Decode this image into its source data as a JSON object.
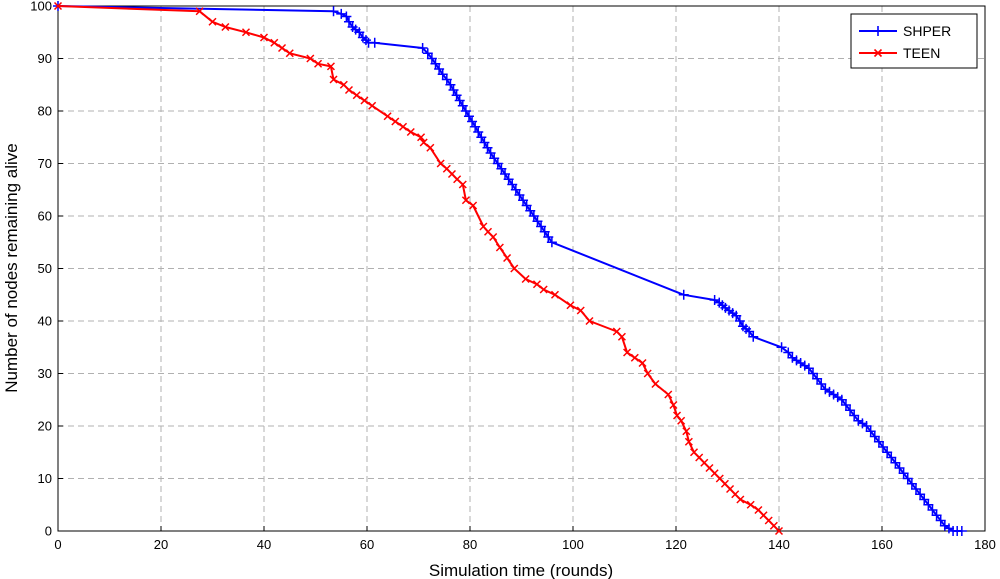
{
  "chart_data": {
    "type": "line",
    "title": "",
    "xlabel": "Simulation time (rounds)",
    "ylabel": "Number of nodes remaining alive",
    "xlim": [
      0,
      180
    ],
    "ylim": [
      0,
      100
    ],
    "xticks": [
      "0",
      "20",
      "40",
      "60",
      "80",
      "100",
      "120",
      "140",
      "160",
      "180"
    ],
    "yticks": [
      "0",
      "10",
      "20",
      "30",
      "40",
      "50",
      "60",
      "70",
      "80",
      "90",
      "100"
    ],
    "grid": true,
    "legend_position": "top-right",
    "series": [
      {
        "name": "SHPER",
        "color": "#0000ff",
        "marker": "plus",
        "x": [
          0,
          53.5,
          55,
          56,
          56.5,
          57.2,
          57.8,
          58.5,
          59.2,
          59.8,
          60.3,
          61.5,
          70.8,
          71.8,
          72.6,
          73.3,
          74,
          74.7,
          75.5,
          76.2,
          76.8,
          77.4,
          78,
          78.6,
          79.2,
          79.8,
          80.4,
          81,
          81.6,
          82.2,
          82.8,
          83.4,
          84,
          84.7,
          85.4,
          86.1,
          86.8,
          87.5,
          88.2,
          88.9,
          89.6,
          90.3,
          91,
          91.7,
          92.4,
          93.1,
          93.8,
          94.5,
          95.2,
          95.9,
          121.5,
          127.5,
          128.4,
          129,
          129.6,
          130.3,
          131,
          131.7,
          132.4,
          133,
          133.6,
          134.2,
          135,
          140.5,
          141.8,
          142.6,
          143.4,
          144.2,
          145,
          145.8,
          146.6,
          147.4,
          148.2,
          149,
          149.8,
          150.6,
          151.4,
          152.2,
          153,
          153.8,
          154.6,
          155.4,
          156.2,
          157,
          157.8,
          158.6,
          159.4,
          160.2,
          161,
          161.8,
          162.6,
          163.4,
          164.2,
          165,
          165.8,
          166.6,
          167.4,
          168.2,
          169,
          169.8,
          170.6,
          171.4,
          172.2,
          173,
          173.8,
          174.6,
          175.5
        ],
        "y": [
          100,
          99,
          98.5,
          98,
          97,
          96,
          95.5,
          95,
          94,
          93.5,
          93,
          93,
          92,
          91,
          90,
          89,
          88,
          87,
          86,
          85,
          84,
          83,
          82,
          81,
          80,
          79,
          78,
          77,
          76,
          75,
          74,
          73,
          72,
          71,
          70,
          69,
          68,
          67,
          66,
          65,
          64,
          63,
          62,
          61,
          60,
          59,
          58,
          57,
          56,
          55,
          45,
          44,
          43.5,
          43,
          42.5,
          42,
          41.5,
          41,
          40,
          39,
          38.5,
          38,
          37,
          35,
          34,
          33,
          32.5,
          32,
          31.5,
          31,
          30,
          29,
          28,
          27,
          26.5,
          26,
          25.5,
          25,
          24,
          23,
          22,
          21,
          20.5,
          20,
          19,
          18,
          17,
          16,
          15,
          14,
          13,
          12,
          11,
          10,
          9,
          8,
          7,
          6,
          5,
          4,
          3,
          2,
          1,
          0.5,
          0,
          0,
          0
        ]
      },
      {
        "name": "TEEN",
        "color": "#ff0000",
        "marker": "x",
        "x": [
          0,
          27.5,
          30,
          32.5,
          36.5,
          40,
          42,
          43.5,
          45,
          49,
          50.5,
          53,
          53.5,
          55.5,
          56.5,
          58,
          59.5,
          61,
          64,
          65.5,
          67,
          68.5,
          70.5,
          71,
          72.3,
          74.3,
          75.5,
          76.5,
          77.5,
          78.6,
          79.2,
          80.6,
          82.6,
          83.5,
          84.5,
          85.8,
          87.2,
          88.6,
          90.8,
          93,
          94.3,
          96.5,
          99.5,
          101.5,
          103.2,
          108.5,
          109.5,
          110.5,
          112,
          113.5,
          114.5,
          116,
          118.5,
          119.5,
          120.2,
          121,
          122,
          122.5,
          123.5,
          124.5,
          125.5,
          126.5,
          127.5,
          128.5,
          129.5,
          130.5,
          131.5,
          132.5,
          134.5,
          136,
          137,
          138,
          139,
          140
        ],
        "y": [
          100,
          99,
          97,
          96,
          95,
          94,
          93,
          92,
          91,
          90,
          89,
          88.5,
          86,
          85,
          84,
          83,
          82,
          81,
          79,
          78,
          77,
          76,
          75,
          74,
          73,
          70,
          69,
          68,
          67,
          66,
          63,
          62,
          58,
          57,
          56,
          54,
          52,
          50,
          48,
          47,
          46,
          45,
          43,
          42,
          40,
          38,
          37,
          34,
          33,
          32,
          30,
          28,
          26,
          24,
          22,
          21,
          19,
          17,
          15,
          14,
          13,
          12,
          11,
          10,
          9,
          8,
          7,
          6,
          5,
          4,
          3,
          2,
          1,
          0
        ]
      }
    ]
  }
}
